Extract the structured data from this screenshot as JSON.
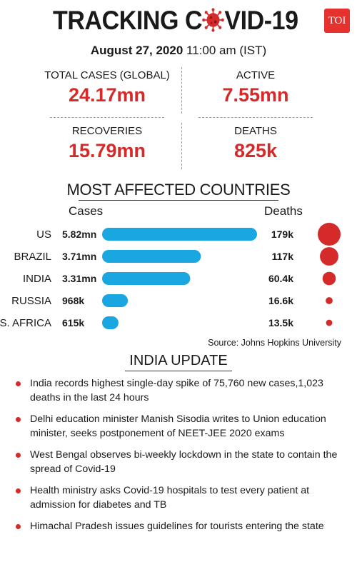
{
  "header": {
    "title_left": "TRACKING C",
    "title_right": "VID-19",
    "badge": "TOI",
    "date": "August 27, 2020",
    "time": "11:00 am (IST)"
  },
  "stats": {
    "total_label": "TOTAL CASES (GLOBAL)",
    "total_value": "24.17mn",
    "active_label": "ACTIVE",
    "active_value": "7.55mn",
    "recoveries_label": "RECOVERIES",
    "recoveries_value": "15.79mn",
    "deaths_label": "DEATHS",
    "deaths_value": "825k"
  },
  "colors": {
    "accent_red": "#d42a2a",
    "bar_blue": "#1aa6e0"
  },
  "chart_data": {
    "type": "bar",
    "title": "MOST AFFECTED COUNTRIES",
    "cases_header": "Cases",
    "deaths_header": "Deaths",
    "categories": [
      "US",
      "BRAZIL",
      "INDIA",
      "RUSSIA",
      "S. AFRICA"
    ],
    "cases_values": [
      5.82,
      3.71,
      3.31,
      0.968,
      0.615
    ],
    "cases_labels": [
      "5.82mn",
      "3.71mn",
      "3.31mn",
      "968k",
      "615k"
    ],
    "deaths_values": [
      179,
      117,
      60.4,
      16.6,
      13.5
    ],
    "deaths_labels": [
      "179k",
      "117k",
      "60.4k",
      "16.6k",
      "13.5k"
    ],
    "source": "Source: Johns Hopkins University"
  },
  "india_update": {
    "title": "INDIA UPDATE",
    "items": [
      "India records highest single-day spike of 75,760 new cases,1,023 deaths in the last 24 hours",
      "Delhi education minister Manish Sisodia writes to Union education minister, seeks postponement of NEET-JEE 2020 exams",
      "West Bengal observes bi-weekly lockdown in the state to contain the spread of Covid-19",
      "Health ministry asks Covid-19 hospitals to test every patient at admission for diabetes and TB",
      "Himachal Pradesh issues guidelines for tourists entering the state"
    ]
  }
}
